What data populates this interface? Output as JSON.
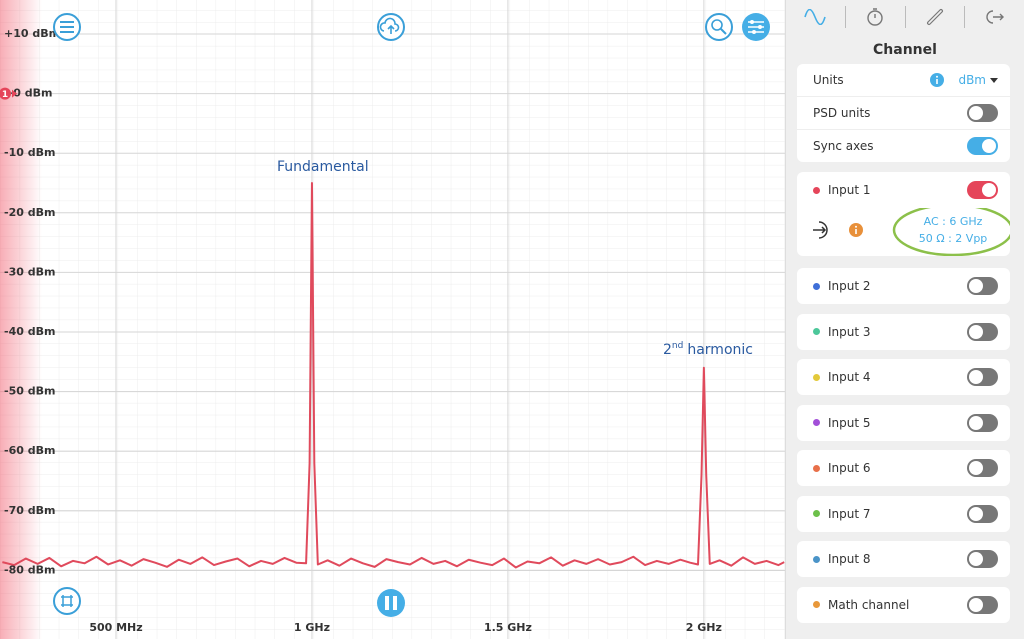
{
  "chart_data": {
    "type": "line",
    "x": [
      210,
      240,
      270,
      300,
      330,
      360,
      390,
      420,
      450,
      480,
      510,
      540,
      570,
      600,
      630,
      660,
      690,
      720,
      750,
      780,
      810,
      840,
      870,
      900,
      930,
      960,
      985,
      994,
      1000,
      1006,
      1015,
      1040,
      1070,
      1100,
      1130,
      1160,
      1190,
      1220,
      1250,
      1280,
      1310,
      1340,
      1370,
      1400,
      1430,
      1460,
      1490,
      1520,
      1550,
      1580,
      1610,
      1640,
      1670,
      1700,
      1730,
      1760,
      1790,
      1820,
      1850,
      1880,
      1910,
      1940,
      1965,
      1985,
      1994,
      2000,
      2006,
      2015,
      2040,
      2070,
      2100,
      2130,
      2160,
      2190,
      2205
    ],
    "values": [
      -78.6,
      -79.1,
      -78.0,
      -78.9,
      -77.9,
      -79.3,
      -78.4,
      -78.8,
      -77.7,
      -79.0,
      -78.3,
      -79.2,
      -78.1,
      -78.7,
      -79.4,
      -78.2,
      -78.9,
      -77.8,
      -79.1,
      -78.5,
      -78.0,
      -79.3,
      -78.4,
      -78.9,
      -77.9,
      -78.7,
      -78.8,
      -62,
      -15,
      -62,
      -79.0,
      -78.3,
      -79.2,
      -78.0,
      -78.8,
      -79.4,
      -78.1,
      -78.6,
      -79.0,
      -77.9,
      -78.9,
      -78.4,
      -79.3,
      -78.2,
      -78.7,
      -79.1,
      -78.0,
      -79.5,
      -78.5,
      -78.8,
      -77.8,
      -79.2,
      -78.3,
      -78.9,
      -78.1,
      -79.0,
      -78.6,
      -77.7,
      -79.1,
      -78.4,
      -78.9,
      -78.2,
      -78.7,
      -79.0,
      -64,
      -46,
      -64,
      -78.9,
      -78.3,
      -79.2,
      -77.8,
      -78.9,
      -78.4,
      -79.1,
      -78.6
    ],
    "color": "#e04a5c",
    "xlim": [
      204,
      2207
    ],
    "ylim": [
      -91.5,
      15.7
    ],
    "xticks": [
      {
        "value": 500,
        "label": "500 MHz"
      },
      {
        "value": 1000,
        "label": "1 GHz"
      },
      {
        "value": 1500,
        "label": "1.5 GHz"
      },
      {
        "value": 2000,
        "label": "2 GHz"
      }
    ],
    "yticks": [
      {
        "value": 10,
        "label": "+10 dBm"
      },
      {
        "value": 0,
        "label": "+0 dBm"
      },
      {
        "value": -10,
        "label": "-10 dBm"
      },
      {
        "value": -20,
        "label": "-20 dBm"
      },
      {
        "value": -30,
        "label": "-30 dBm"
      },
      {
        "value": -40,
        "label": "-40 dBm"
      },
      {
        "value": -50,
        "label": "-50 dBm"
      },
      {
        "value": -60,
        "label": "-60 dBm"
      },
      {
        "value": -70,
        "label": "-70 dBm"
      },
      {
        "value": -80,
        "label": "-80 dBm"
      }
    ],
    "grid": true,
    "marker": "1",
    "annotations": [
      {
        "text": "Fundamental"
      },
      {
        "base": "2",
        "sup": "nd",
        "text": "harmonic"
      }
    ]
  },
  "sidebar": {
    "title": "Channel",
    "settings": [
      {
        "label": "Units",
        "value": "dBm"
      },
      {
        "label": "PSD units",
        "on": false
      },
      {
        "label": "Sync axes",
        "on": true,
        "color": "#45aee6"
      }
    ],
    "channels": [
      {
        "label": "Input 1",
        "color": "#e5455a",
        "on": true,
        "details": [
          "AC : 6 GHz",
          "50 Ω : 2 Vpp"
        ]
      },
      {
        "label": "Input 2",
        "color": "#3f6fd8",
        "on": false
      },
      {
        "label": "Input 3",
        "color": "#4cc79a",
        "on": false
      },
      {
        "label": "Input 4",
        "color": "#e3c93a",
        "on": false
      },
      {
        "label": "Input 5",
        "color": "#a24fd8",
        "on": false
      },
      {
        "label": "Input 6",
        "color": "#e8704a",
        "on": false
      },
      {
        "label": "Input 7",
        "color": "#6cc04a",
        "on": false
      },
      {
        "label": "Input 8",
        "color": "#4a94c8",
        "on": false
      },
      {
        "label": "Math channel",
        "color": "#e8983a",
        "on": false
      }
    ]
  }
}
